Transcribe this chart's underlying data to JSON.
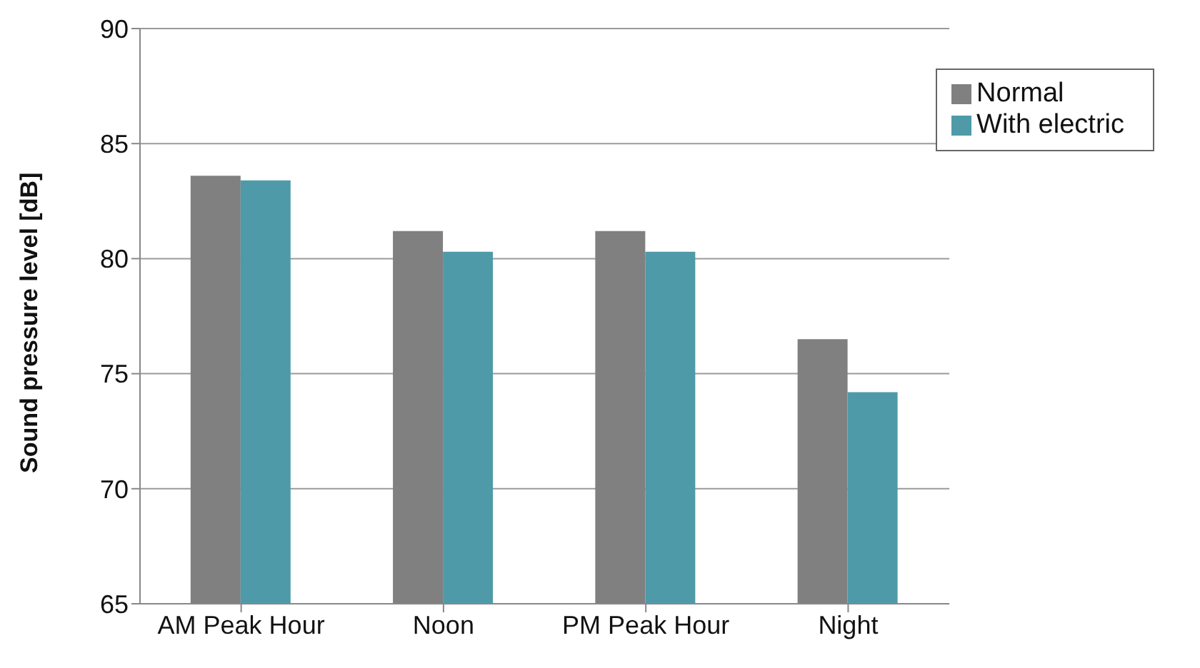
{
  "chart_data": {
    "type": "bar",
    "ylabel": "Sound pressure level [dB]",
    "categories": [
      "AM Peak Hour",
      "Noon",
      "PM Peak Hour",
      "Night"
    ],
    "series": [
      {
        "name": "Normal",
        "color": "#808080",
        "values": [
          83.6,
          81.2,
          81.2,
          76.5
        ]
      },
      {
        "name": "With electric",
        "color": "#4f9aa9",
        "values": [
          83.4,
          80.3,
          80.3,
          74.2
        ]
      }
    ],
    "ylim": [
      65,
      90
    ],
    "yticks": [
      65,
      70,
      75,
      80,
      85,
      90
    ],
    "grid": "y",
    "legend": "top right"
  }
}
